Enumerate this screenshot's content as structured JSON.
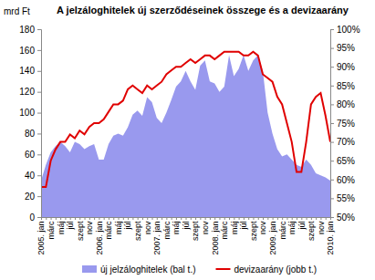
{
  "chart_data": {
    "type": "line",
    "title": "A jelzáloghitelek új szerződéseinek összege és a devizaarány",
    "y_label": "mrd Ft",
    "categories": [
      "2005. jan",
      null,
      "márc",
      null,
      "máj",
      null,
      "júl",
      null,
      "szept",
      null,
      "nov",
      null,
      "2006. jan",
      null,
      "márc",
      null,
      "máj",
      null,
      "júl",
      null,
      "szept",
      null,
      "nov",
      null,
      "2007. jan",
      null,
      "márc",
      null,
      "máj",
      null,
      "júl",
      null,
      "szept",
      null,
      "nov",
      null,
      "2008. jan",
      null,
      "márc",
      null,
      "máj",
      null,
      "júl",
      null,
      "szept",
      null,
      "nov",
      null,
      "2009. jan",
      null,
      "márc",
      null,
      "máj",
      null,
      "júl",
      null,
      "szept",
      null,
      "nov",
      null,
      "2010. jan"
    ],
    "series": [
      {
        "name": "új jelzáloghitelek (bal t.)",
        "type": "area",
        "color": "#9999ee",
        "values": [
          35,
          50,
          62,
          68,
          72,
          68,
          62,
          72,
          70,
          65,
          68,
          70,
          55,
          55,
          70,
          78,
          80,
          78,
          86,
          98,
          102,
          97,
          115,
          110,
          95,
          90,
          100,
          112,
          125,
          130,
          140,
          130,
          122,
          145,
          150,
          130,
          128,
          120,
          125,
          155,
          135,
          142,
          155,
          140,
          150,
          155,
          140,
          100,
          80,
          65,
          58,
          60,
          55,
          50,
          48,
          55,
          50,
          42,
          40,
          38,
          35
        ]
      },
      {
        "name": "devizaarány (jobb t.)",
        "type": "line",
        "axis": "y2",
        "color": "#e00000",
        "values": [
          58,
          58,
          65,
          68,
          70,
          70,
          72,
          71,
          73,
          72,
          74,
          75,
          75,
          76,
          78,
          80,
          80,
          81,
          84,
          85,
          84,
          83,
          85,
          84,
          85,
          86,
          88,
          89,
          90,
          90,
          91,
          92,
          91,
          92,
          93,
          93,
          92,
          93,
          94,
          94,
          94,
          94,
          93,
          93,
          94,
          93,
          88,
          87,
          86,
          82,
          80,
          75,
          70,
          62,
          62,
          70,
          80,
          82,
          83,
          77,
          70
        ]
      }
    ],
    "ylim": [
      0,
      180
    ],
    "yticks": [
      0,
      20,
      40,
      60,
      80,
      100,
      120,
      140,
      160,
      180
    ],
    "y2lim": [
      50,
      100
    ],
    "y2ticks": [
      {
        "value": 50,
        "label": "50%"
      },
      {
        "value": 55,
        "label": "55%"
      },
      {
        "value": 60,
        "label": "60%"
      },
      {
        "value": 65,
        "label": "65%"
      },
      {
        "value": 70,
        "label": "70%"
      },
      {
        "value": 75,
        "label": "75%"
      },
      {
        "value": 80,
        "label": "80%"
      },
      {
        "value": 85,
        "label": "85%"
      },
      {
        "value": 90,
        "label": "90%"
      },
      {
        "value": 95,
        "label": "95%"
      },
      {
        "value": 100,
        "label": "100%"
      }
    ],
    "grid": false,
    "legend": "bottom"
  }
}
